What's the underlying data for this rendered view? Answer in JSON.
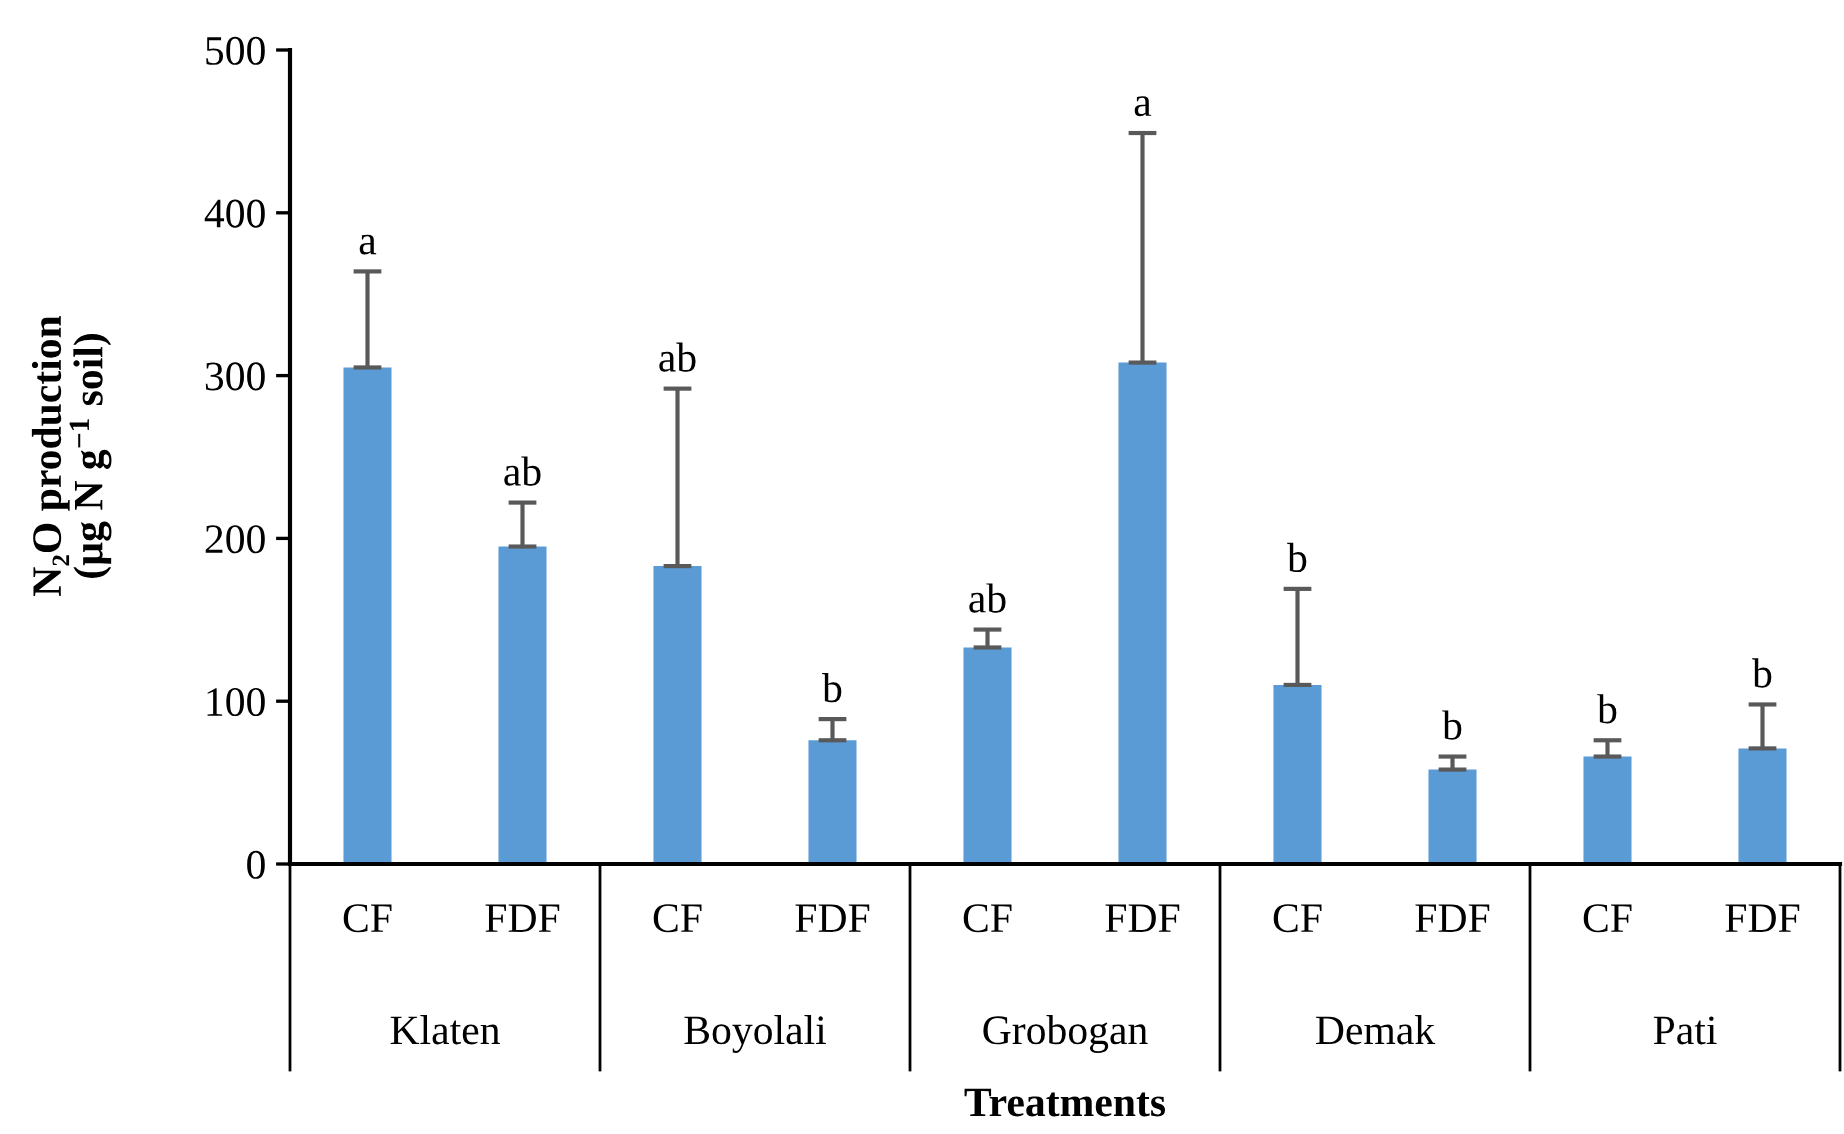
{
  "chart_data": {
    "type": "bar",
    "xlabel": "Treatments",
    "ylabel": "N₂O production\n(µg N g$^{−1}$ soil)",
    "categories": [
      "CF",
      "FDF",
      "CF",
      "FDF",
      "CF",
      "FDF",
      "CF",
      "FDF",
      "CF",
      "FDF"
    ],
    "values": [
      305,
      195,
      183,
      76,
      133,
      308,
      110,
      58,
      66,
      71
    ],
    "errors": [
      [
        305,
        364
      ],
      [
        195,
        222
      ],
      [
        183,
        292
      ],
      [
        76,
        89
      ],
      [
        133,
        144
      ],
      [
        308,
        449
      ],
      [
        110,
        169
      ],
      [
        58,
        66
      ],
      [
        66,
        76
      ],
      [
        71,
        98
      ]
    ],
    "color": "#5b9bd5",
    "annotations": [
      "Klaten",
      "Boyolali",
      "Grobogan",
      "Demak",
      "Pati",
      {
        "text": "a",
        "y": 364
      },
      {
        "text": "ab",
        "y": 222
      },
      {
        "text": "ab",
        "y": 292
      },
      {
        "text": "b",
        "y": 89
      },
      {
        "text": "ab",
        "y": 144
      },
      {
        "text": "a",
        "y": 449
      },
      {
        "text": "b",
        "y": 169
      },
      {
        "text": "b",
        "y": 66
      },
      {
        "text": "b",
        "y": 76
      },
      {
        "text": "b",
        "y": 98
      }
    ],
    "ylim": [
      0,
      500
    ],
    "yticks": [
      0,
      100,
      200,
      300,
      400,
      500
    ],
    "grid": false,
    "legend": false
  }
}
